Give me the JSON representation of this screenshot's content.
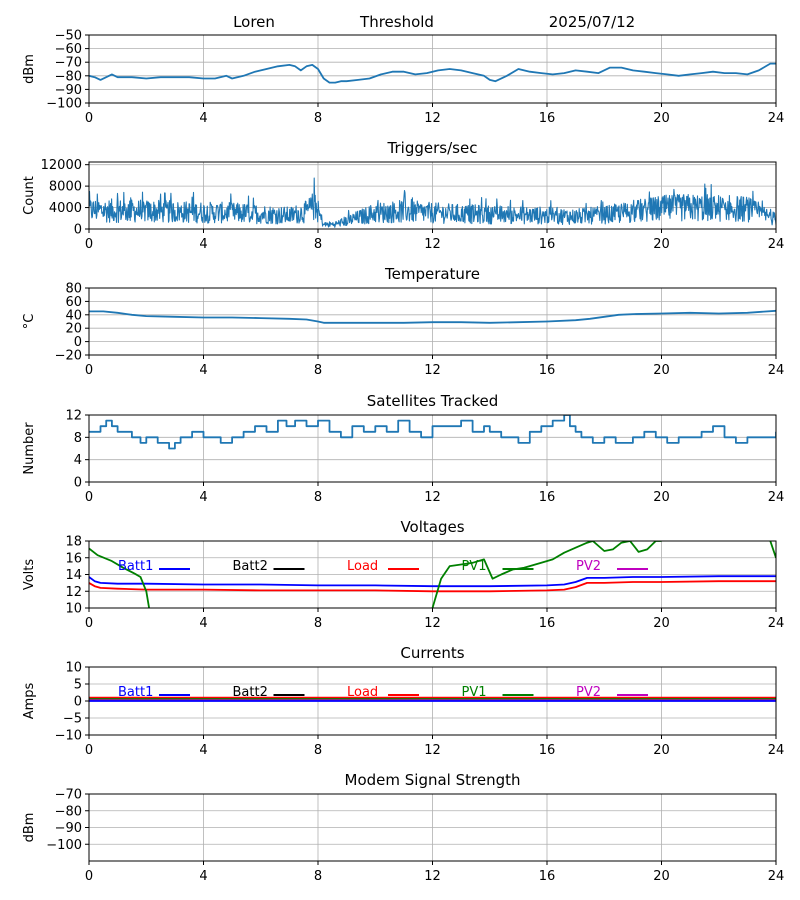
{
  "header": {
    "site": "Loren",
    "label": "Threshold",
    "date": "2025/07/12"
  },
  "chart_data": [
    {
      "id": "threshold",
      "type": "line",
      "title": "",
      "ylabel": "dBm",
      "xlim": [
        0,
        24
      ],
      "ylim": [
        -100,
        -50
      ],
      "xticks": [
        0,
        4,
        8,
        12,
        16,
        20,
        24
      ],
      "yticks": [
        -100,
        -90,
        -80,
        -70,
        -60,
        -50
      ],
      "grid": true,
      "series": [
        {
          "color": "#1f77b4",
          "x": [
            0,
            0.2,
            0.4,
            0.6,
            0.8,
            1.0,
            1.5,
            2.0,
            2.5,
            3.0,
            3.5,
            4.0,
            4.4,
            4.8,
            5.0,
            5.4,
            5.8,
            6.2,
            6.6,
            7.0,
            7.2,
            7.4,
            7.6,
            7.8,
            8.0,
            8.2,
            8.4,
            8.6,
            8.8,
            9.0,
            9.4,
            9.8,
            10.2,
            10.6,
            11.0,
            11.4,
            11.8,
            12.2,
            12.6,
            13.0,
            13.4,
            13.8,
            14.0,
            14.2,
            14.6,
            15.0,
            15.4,
            15.8,
            16.2,
            16.6,
            17.0,
            17.4,
            17.8,
            18.2,
            18.6,
            19.0,
            19.4,
            19.8,
            20.2,
            20.6,
            21.0,
            21.4,
            21.8,
            22.2,
            22.6,
            23.0,
            23.4,
            23.8,
            24.0
          ],
          "y": [
            -80,
            -81,
            -83,
            -81,
            -79,
            -81,
            -81,
            -82,
            -81,
            -81,
            -81,
            -82,
            -82,
            -80,
            -82,
            -80,
            -77,
            -75,
            -73,
            -72,
            -73,
            -76,
            -73,
            -72,
            -75,
            -82,
            -85,
            -85,
            -84,
            -84,
            -83,
            -82,
            -79,
            -77,
            -77,
            -79,
            -78,
            -76,
            -75,
            -76,
            -78,
            -80,
            -83,
            -84,
            -80,
            -75,
            -77,
            -78,
            -79,
            -78,
            -76,
            -77,
            -78,
            -74,
            -74,
            -76,
            -77,
            -78,
            -79,
            -80,
            -79,
            -78,
            -77,
            -78,
            -78,
            -79,
            -76,
            -71,
            -71
          ]
        }
      ]
    },
    {
      "id": "triggers",
      "type": "line",
      "title": "Triggers/sec",
      "ylabel": "Count",
      "xlim": [
        0,
        24
      ],
      "ylim": [
        0,
        12500
      ],
      "xticks": [
        0,
        4,
        8,
        12,
        16,
        20,
        24
      ],
      "yticks": [
        0,
        4000,
        8000,
        12000
      ],
      "grid": true,
      "noisy": true,
      "series": [
        {
          "color": "#1f77b4",
          "x": [
            0,
            1,
            2,
            3,
            4,
            5,
            6,
            7,
            7.6,
            7.9,
            8.2,
            8.6,
            9,
            10,
            11,
            12,
            13,
            14,
            15,
            16,
            17,
            18,
            19,
            20,
            21,
            22,
            23,
            24
          ],
          "y": [
            3500,
            3400,
            3300,
            3200,
            3100,
            3000,
            2800,
            2500,
            3200,
            4500,
            800,
            900,
            1500,
            3000,
            3300,
            3000,
            2800,
            2700,
            2600,
            2500,
            2300,
            2600,
            3200,
            3800,
            4000,
            3900,
            3700,
            1800
          ]
        }
      ]
    },
    {
      "id": "temperature",
      "type": "line",
      "title": "Temperature",
      "ylabel": "°C",
      "xlim": [
        0,
        24
      ],
      "ylim": [
        -20,
        80
      ],
      "xticks": [
        0,
        4,
        8,
        12,
        16,
        20,
        24
      ],
      "yticks": [
        -20,
        0,
        20,
        40,
        60,
        80
      ],
      "grid": true,
      "series": [
        {
          "color": "#1f77b4",
          "x": [
            0,
            0.5,
            1.0,
            1.5,
            2.0,
            3.0,
            4.0,
            5.0,
            6.0,
            7.0,
            7.6,
            8.0,
            8.2,
            9.0,
            10.0,
            11.0,
            12.0,
            13.0,
            14.0,
            15.0,
            16.0,
            17.0,
            17.5,
            18.0,
            18.5,
            19.0,
            20.0,
            21.0,
            22.0,
            23.0,
            24.0
          ],
          "y": [
            45,
            45,
            43,
            40,
            38,
            37,
            36,
            36,
            35,
            34,
            33,
            30,
            28,
            28,
            28,
            28,
            29,
            29,
            28,
            29,
            30,
            32,
            34,
            37,
            40,
            41,
            42,
            43,
            42,
            43,
            46
          ]
        }
      ]
    },
    {
      "id": "satellites",
      "type": "line",
      "title": "Satellites Tracked",
      "ylabel": "Number",
      "xlim": [
        0,
        24
      ],
      "ylim": [
        0,
        12
      ],
      "xticks": [
        0,
        4,
        8,
        12,
        16,
        20,
        24
      ],
      "yticks": [
        0,
        4,
        8,
        12
      ],
      "grid": true,
      "step": true,
      "series": [
        {
          "color": "#1f77b4",
          "x": [
            0,
            0.4,
            0.6,
            0.8,
            1.0,
            1.5,
            1.8,
            2.0,
            2.4,
            2.8,
            3.0,
            3.2,
            3.6,
            4.0,
            4.6,
            5.0,
            5.4,
            5.8,
            6.2,
            6.6,
            6.9,
            7.2,
            7.6,
            8.0,
            8.4,
            8.8,
            9.2,
            9.6,
            10.0,
            10.4,
            10.8,
            11.2,
            11.6,
            12.0,
            12.6,
            13.0,
            13.4,
            13.8,
            14.0,
            14.4,
            15.0,
            15.4,
            15.8,
            16.2,
            16.6,
            16.8,
            17.0,
            17.2,
            17.6,
            18.0,
            18.4,
            19.0,
            19.4,
            19.8,
            20.2,
            20.6,
            21.0,
            21.4,
            21.8,
            22.2,
            22.6,
            23.0,
            23.4,
            24.0
          ],
          "y": [
            9,
            10,
            11,
            10,
            9,
            8,
            7,
            8,
            7,
            6,
            7,
            8,
            9,
            8,
            7,
            8,
            9,
            10,
            9,
            11,
            10,
            11,
            10,
            11,
            9,
            8,
            10,
            9,
            10,
            9,
            11,
            9,
            8,
            10,
            10,
            11,
            9,
            10,
            9,
            8,
            7,
            9,
            10,
            11,
            12,
            10,
            9,
            8,
            7,
            8,
            7,
            8,
            9,
            8,
            7,
            8,
            8,
            9,
            10,
            8,
            7,
            8,
            8,
            9
          ]
        }
      ]
    },
    {
      "id": "voltages",
      "type": "line",
      "title": "Voltages",
      "ylabel": "Volts",
      "xlim": [
        0,
        24
      ],
      "ylim": [
        10,
        18
      ],
      "xticks": [
        0,
        4,
        8,
        12,
        16,
        20,
        24
      ],
      "yticks": [
        10,
        12,
        14,
        16,
        18
      ],
      "grid": true,
      "legend": [
        "Batt1",
        "Batt2",
        "Load",
        "PV1",
        "PV2"
      ],
      "legend_colors": [
        "#0000ff",
        "#000000",
        "#ff0000",
        "#008000",
        "#bf00bf"
      ],
      "series": [
        {
          "name": "Batt1",
          "color": "#0000ff",
          "x": [
            0,
            0.2,
            0.4,
            1,
            2,
            4,
            6,
            8,
            10,
            12,
            14,
            16,
            16.6,
            17,
            17.4,
            18,
            19,
            20,
            22,
            24
          ],
          "y": [
            13.7,
            13.2,
            13.0,
            12.9,
            12.9,
            12.8,
            12.8,
            12.7,
            12.7,
            12.6,
            12.6,
            12.7,
            12.8,
            13.1,
            13.6,
            13.6,
            13.7,
            13.7,
            13.8,
            13.8
          ]
        },
        {
          "name": "Load",
          "color": "#ff0000",
          "x": [
            0,
            0.2,
            0.4,
            1,
            2,
            4,
            6,
            8,
            10,
            12,
            14,
            16,
            16.6,
            17,
            17.4,
            18,
            19,
            20,
            22,
            24
          ],
          "y": [
            13.0,
            12.6,
            12.4,
            12.3,
            12.2,
            12.2,
            12.1,
            12.1,
            12.1,
            12.0,
            12.0,
            12.1,
            12.2,
            12.5,
            13.0,
            13.0,
            13.1,
            13.1,
            13.2,
            13.2
          ]
        },
        {
          "name": "PV1",
          "color": "#008000",
          "x": [
            0,
            0.3,
            0.8,
            1.2,
            1.6,
            1.8,
            2.0,
            2.1,
            null,
            12.0,
            12.3,
            12.6,
            13.0,
            13.4,
            13.8,
            14.1,
            14.4,
            14.8,
            15.2,
            15.8,
            16.2,
            16.6,
            17.0,
            17.4,
            17.6,
            18.0,
            18.3,
            18.6,
            18.9,
            19.2,
            19.5,
            19.8,
            20.0,
            null,
            23.8,
            24.0
          ],
          "y": [
            17.1,
            16.3,
            15.6,
            14.8,
            14.1,
            13.7,
            12.0,
            10.0,
            null,
            10.0,
            13.5,
            15.0,
            15.2,
            15.4,
            15.8,
            13.5,
            14.0,
            14.6,
            14.8,
            15.4,
            15.8,
            16.6,
            17.2,
            17.8,
            18.0,
            16.8,
            17.0,
            17.8,
            18.0,
            16.7,
            17.0,
            18.0,
            18.0,
            null,
            18.0,
            16.0
          ]
        }
      ]
    },
    {
      "id": "currents",
      "type": "line",
      "title": "Currents",
      "ylabel": "Amps",
      "xlim": [
        0,
        24
      ],
      "ylim": [
        -10,
        10
      ],
      "xticks": [
        0,
        4,
        8,
        12,
        16,
        20,
        24
      ],
      "yticks": [
        -10,
        -5,
        0,
        5,
        10
      ],
      "grid": true,
      "legend": [
        "Batt1",
        "Batt2",
        "Load",
        "PV1",
        "PV2"
      ],
      "legend_colors": [
        "#0000ff",
        "#000000",
        "#ff0000",
        "#008000",
        "#bf00bf"
      ],
      "series": [
        {
          "name": "Load",
          "color": "#ff0000",
          "x": [
            0,
            24
          ],
          "y": [
            1.0,
            1.0
          ]
        },
        {
          "name": "PV1",
          "color": "#008000",
          "x": [
            0,
            24
          ],
          "y": [
            0.6,
            0.6
          ]
        },
        {
          "name": "PV2",
          "color": "#bf00bf",
          "x": [
            0,
            24
          ],
          "y": [
            0.2,
            0.2
          ]
        },
        {
          "name": "Batt1",
          "color": "#0000ff",
          "x": [
            0,
            24
          ],
          "y": [
            0.0,
            0.0
          ]
        }
      ]
    },
    {
      "id": "modem",
      "type": "line",
      "title": "Modem Signal Strength",
      "ylabel": "dBm",
      "xlim": [
        0,
        24
      ],
      "ylim": [
        -110,
        -70
      ],
      "xticks": [
        0,
        4,
        8,
        12,
        16,
        20,
        24
      ],
      "yticks": [
        -100,
        -90,
        -80,
        -70
      ],
      "grid": true,
      "series": []
    }
  ]
}
